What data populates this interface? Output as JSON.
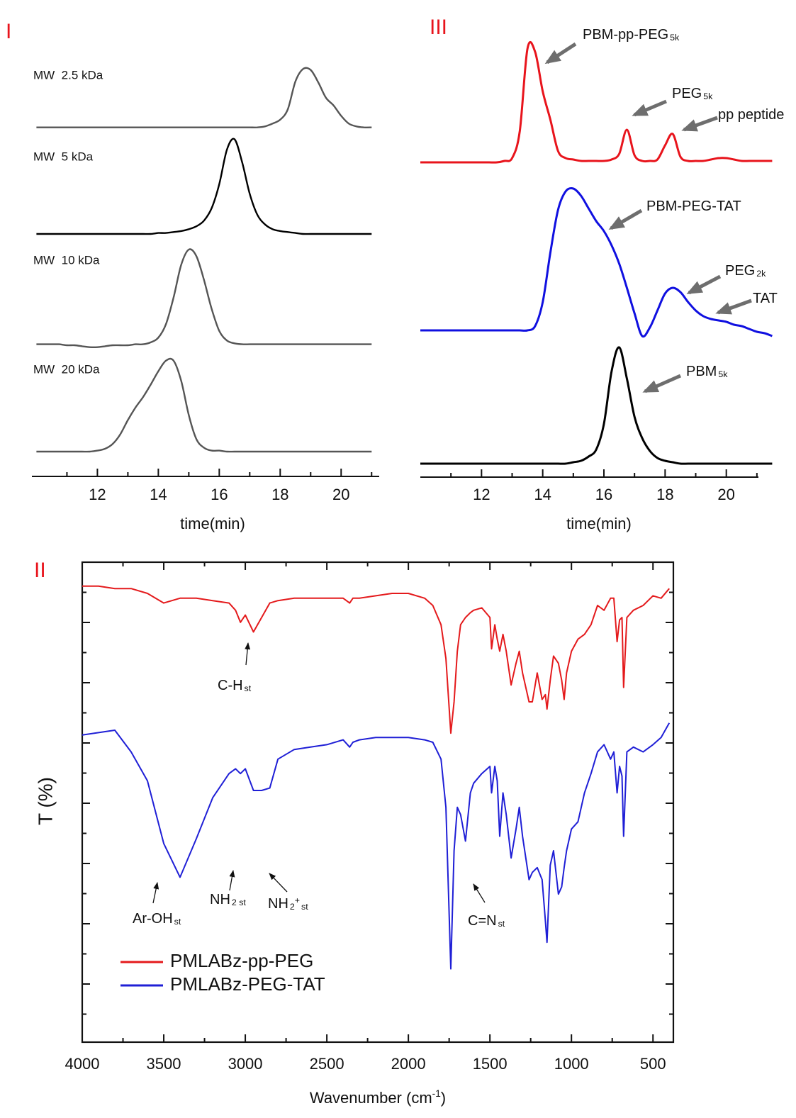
{
  "chart_data": [
    {
      "type": "line",
      "label": "I",
      "xlabel": "time(min)",
      "xlim": [
        9.85,
        21.25
      ],
      "xticks": [
        12,
        14,
        16,
        18,
        20
      ],
      "ylim": [
        0,
        1
      ],
      "x": [
        10,
        10.25,
        10.5,
        10.75,
        11,
        11.25,
        11.5,
        11.75,
        12,
        12.25,
        12.5,
        12.75,
        13,
        13.25,
        13.5,
        13.75,
        14,
        14.25,
        14.5,
        14.75,
        15,
        15.25,
        15.5,
        15.75,
        16,
        16.25,
        16.5,
        16.75,
        17,
        17.25,
        17.5,
        17.75,
        18,
        18.25,
        18.5,
        18.75,
        19,
        19.25,
        19.5,
        19.75,
        20,
        20.25,
        20.5,
        20.75,
        21
      ],
      "series": [
        {
          "name": "MW  2.5 kDa",
          "color": "#555555",
          "values": [
            0.01,
            0.01,
            0.01,
            0.01,
            0.01,
            0.01,
            0.01,
            0.01,
            0.01,
            0.01,
            0.01,
            0.01,
            0.01,
            0.01,
            0.01,
            0.01,
            0.01,
            0.01,
            0.01,
            0.01,
            0.01,
            0.01,
            0.01,
            0.01,
            0.01,
            0.01,
            0.01,
            0.01,
            0.01,
            0.01,
            0.02,
            0.05,
            0.09,
            0.2,
            0.49,
            0.62,
            0.61,
            0.48,
            0.32,
            0.24,
            0.13,
            0.05,
            0.02,
            0.01,
            0.01
          ]
        },
        {
          "name": "MW  5 kDa",
          "color": "#000000",
          "values": [
            0,
            0,
            0,
            0,
            0,
            0,
            0,
            0,
            0,
            0,
            0,
            0,
            0,
            0,
            0,
            0,
            0.01,
            0.01,
            0.02,
            0.03,
            0.05,
            0.08,
            0.14,
            0.27,
            0.52,
            0.88,
            0.99,
            0.75,
            0.42,
            0.2,
            0.1,
            0.05,
            0.03,
            0.02,
            0.01,
            0,
            0,
            0,
            0,
            0,
            0,
            0,
            0,
            0,
            0
          ]
        },
        {
          "name": "MW  10 kDa",
          "color": "#555555",
          "values": [
            0.01,
            0.01,
            0.01,
            0.01,
            0,
            0,
            -0.01,
            -0.02,
            -0.02,
            -0.01,
            0,
            0,
            0,
            0.01,
            0.01,
            0.03,
            0.08,
            0.22,
            0.5,
            0.84,
            1.0,
            0.93,
            0.68,
            0.38,
            0.15,
            0.05,
            0.02,
            0.01,
            0.01,
            0.01,
            0.01,
            0.01,
            0.01,
            0.01,
            0.01,
            0.01,
            0.01,
            0.01,
            0.01,
            0.01,
            0.01,
            0.01,
            0.01,
            0.01,
            0.01
          ]
        },
        {
          "name": "MW  20 kDa",
          "color": "#555555",
          "values": [
            0,
            0,
            0,
            0,
            0,
            0,
            0,
            0,
            0.01,
            0.03,
            0.08,
            0.18,
            0.33,
            0.46,
            0.57,
            0.7,
            0.84,
            0.95,
            0.95,
            0.74,
            0.38,
            0.13,
            0.04,
            0.01,
            0.01,
            0,
            0,
            0,
            0,
            0,
            0,
            0,
            0,
            0,
            0,
            0,
            0,
            0,
            0,
            0,
            0,
            0,
            0,
            0,
            0
          ]
        }
      ]
    },
    {
      "type": "line",
      "label": "III",
      "xlabel": "time(min)",
      "xlim": [
        10,
        21.05
      ],
      "xticks": [
        12,
        14,
        16,
        18,
        20
      ],
      "ylim": [
        0,
        1
      ],
      "x": [
        10,
        10.25,
        10.5,
        10.75,
        11,
        11.25,
        11.5,
        11.75,
        12,
        12.25,
        12.5,
        12.75,
        13,
        13.25,
        13.5,
        13.75,
        14,
        14.25,
        14.5,
        14.75,
        15,
        15.25,
        15.5,
        15.75,
        16,
        16.25,
        16.5,
        16.75,
        17,
        17.25,
        17.5,
        17.75,
        18,
        18.25,
        18.5,
        18.75,
        19,
        19.25,
        19.5,
        19.75,
        20,
        20.25,
        20.5,
        20.75,
        21,
        21.25,
        21.5
      ],
      "series": [
        {
          "color": "#e8141c",
          "values": [
            0,
            0,
            0,
            0,
            0,
            0,
            0,
            0,
            0,
            0,
            0,
            0.01,
            0.03,
            0.22,
            0.8,
            0.78,
            0.5,
            0.3,
            0.08,
            0.03,
            0.02,
            0.01,
            0.01,
            0.01,
            0.01,
            0.02,
            0.06,
            0.23,
            0.05,
            0.01,
            0.01,
            0.02,
            0.12,
            0.2,
            0.04,
            0.01,
            0.01,
            0.01,
            0.02,
            0.03,
            0.03,
            0.02,
            0.01,
            0.01,
            0.01,
            0.01,
            0.01
          ]
        },
        {
          "color": "#1010e0",
          "values": [
            0,
            0,
            0,
            0,
            0,
            0,
            0,
            0,
            0,
            0,
            0,
            0,
            0,
            0,
            0,
            0.03,
            0.2,
            0.55,
            0.85,
            0.98,
            1.0,
            0.95,
            0.86,
            0.77,
            0.7,
            0.6,
            0.47,
            0.3,
            0.12,
            -0.04,
            0.02,
            0.14,
            0.26,
            0.3,
            0.27,
            0.2,
            0.14,
            0.1,
            0.08,
            0.07,
            0.06,
            0.04,
            0.03,
            0.01,
            -0.01,
            -0.02,
            -0.04
          ]
        },
        {
          "color": "#000000",
          "values": [
            0,
            0,
            0,
            0,
            0,
            0,
            0,
            0,
            0,
            0,
            0,
            0,
            0,
            0,
            0,
            0,
            0,
            0,
            0,
            0,
            0.01,
            0.02,
            0.05,
            0.1,
            0.28,
            0.65,
            0.82,
            0.6,
            0.33,
            0.18,
            0.09,
            0.04,
            0.02,
            0.01,
            0,
            0,
            0,
            0,
            0,
            0,
            0,
            0,
            0,
            0,
            0,
            0,
            0
          ]
        }
      ],
      "annotations": [
        {
          "parts": [
            {
              "text": "PBM-pp-PEG"
            },
            {
              "sub": "5k"
            }
          ]
        },
        {
          "parts": [
            {
              "text": "PEG"
            },
            {
              "sub": "5k"
            }
          ]
        },
        {
          "parts": [
            {
              "text": "pp peptide"
            }
          ]
        },
        {
          "parts": [
            {
              "text": "PBM-PEG-TAT"
            }
          ]
        },
        {
          "parts": [
            {
              "text": "PEG"
            },
            {
              "sub": "2k"
            }
          ]
        },
        {
          "parts": [
            {
              "text": "TAT"
            }
          ]
        },
        {
          "parts": [
            {
              "text": "PBM"
            },
            {
              "sub": "5k"
            }
          ]
        }
      ]
    },
    {
      "type": "line",
      "label": "II",
      "ylabel": "T (%)",
      "xlabel": [
        {
          "text": "Wavenumber (cm"
        },
        {
          "sup": "-1"
        },
        {
          "text": ")"
        }
      ],
      "xlim": [
        4000,
        375
      ],
      "xticks": [
        4000,
        3500,
        3000,
        2500,
        2000,
        1500,
        1000,
        500
      ],
      "ylim": [
        0,
        1
      ],
      "x": [
        4000,
        3900,
        3800,
        3700,
        3600,
        3500,
        3400,
        3300,
        3200,
        3100,
        3060,
        3030,
        3000,
        2950,
        2900,
        2850,
        2800,
        2700,
        2600,
        2500,
        2400,
        2360,
        2340,
        2300,
        2200,
        2100,
        2000,
        1900,
        1850,
        1800,
        1770,
        1740,
        1720,
        1700,
        1680,
        1650,
        1620,
        1600,
        1550,
        1500,
        1490,
        1470,
        1455,
        1440,
        1420,
        1400,
        1370,
        1340,
        1320,
        1300,
        1260,
        1240,
        1210,
        1180,
        1160,
        1150,
        1130,
        1110,
        1080,
        1060,
        1045,
        1030,
        1000,
        960,
        920,
        880,
        840,
        800,
        760,
        740,
        720,
        705,
        690,
        680,
        660,
        620,
        560,
        500,
        450,
        400
      ],
      "series": [
        {
          "name": "PMLABz-pp-PEG",
          "color": "#e41a1c",
          "values": [
            0.98,
            0.98,
            0.97,
            0.97,
            0.95,
            0.91,
            0.93,
            0.93,
            0.92,
            0.91,
            0.88,
            0.83,
            0.86,
            0.79,
            0.85,
            0.91,
            0.92,
            0.93,
            0.93,
            0.93,
            0.93,
            0.91,
            0.93,
            0.93,
            0.94,
            0.95,
            0.95,
            0.93,
            0.9,
            0.82,
            0.68,
            0.37,
            0.5,
            0.71,
            0.82,
            0.85,
            0.87,
            0.88,
            0.89,
            0.85,
            0.72,
            0.82,
            0.76,
            0.71,
            0.78,
            0.71,
            0.57,
            0.66,
            0.71,
            0.62,
            0.5,
            0.5,
            0.62,
            0.51,
            0.53,
            0.47,
            0.59,
            0.69,
            0.66,
            0.59,
            0.51,
            0.62,
            0.71,
            0.76,
            0.78,
            0.82,
            0.9,
            0.88,
            0.93,
            0.93,
            0.75,
            0.84,
            0.85,
            0.56,
            0.85,
            0.88,
            0.9,
            0.94,
            0.93,
            0.97
          ]
        },
        {
          "name": "PMLABz-PEG-TAT",
          "color": "#1f1fd6",
          "values": [
            0.98,
            0.99,
            1.0,
            0.91,
            0.79,
            0.53,
            0.39,
            0.55,
            0.72,
            0.82,
            0.84,
            0.82,
            0.84,
            0.75,
            0.75,
            0.76,
            0.88,
            0.92,
            0.93,
            0.94,
            0.96,
            0.93,
            0.95,
            0.96,
            0.97,
            0.97,
            0.97,
            0.96,
            0.95,
            0.88,
            0.68,
            0.01,
            0.5,
            0.68,
            0.65,
            0.54,
            0.74,
            0.78,
            0.82,
            0.85,
            0.74,
            0.85,
            0.79,
            0.56,
            0.74,
            0.65,
            0.47,
            0.59,
            0.68,
            0.56,
            0.38,
            0.41,
            0.43,
            0.38,
            0.21,
            0.12,
            0.44,
            0.5,
            0.32,
            0.35,
            0.43,
            0.5,
            0.59,
            0.62,
            0.74,
            0.82,
            0.91,
            0.94,
            0.88,
            0.91,
            0.74,
            0.85,
            0.81,
            0.56,
            0.91,
            0.93,
            0.91,
            0.94,
            0.97,
            1.03
          ]
        }
      ],
      "annotations": [
        {
          "parts": [
            {
              "text": "C-H"
            },
            {
              "sub": "st"
            }
          ]
        },
        {
          "parts": [
            {
              "text": "Ar-OH"
            },
            {
              "sub": "st"
            }
          ]
        },
        {
          "parts": [
            {
              "text": "NH"
            },
            {
              "sub": "2 st"
            }
          ]
        },
        {
          "parts": [
            {
              "text": "NH"
            },
            {
              "sub": "2"
            },
            {
              "sup": "+"
            },
            {
              "sub": "st"
            }
          ]
        },
        {
          "parts": [
            {
              "text": "C=N"
            },
            {
              "sub": "st"
            }
          ]
        }
      ]
    }
  ]
}
